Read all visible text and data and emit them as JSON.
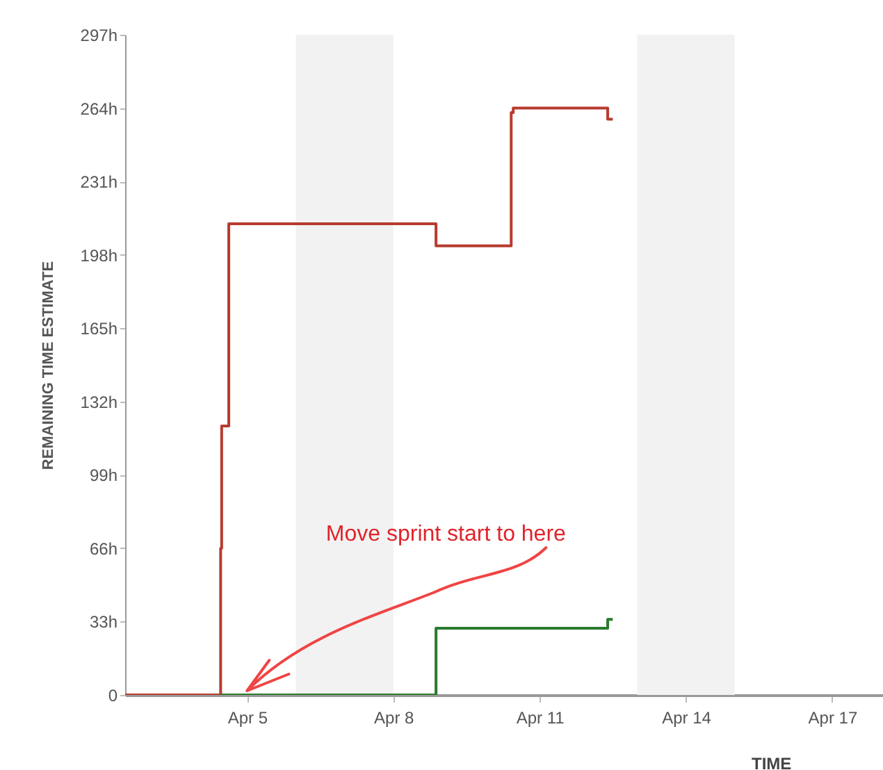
{
  "chart_data": {
    "type": "step",
    "xlabel": "TIME",
    "ylabel": "REMAINING TIME ESTIMATE",
    "xlim": [
      "--04-02T12:00",
      "--04-18T01:00"
    ],
    "xticks": [
      {
        "value": "--04-05",
        "label": "Apr 5"
      },
      {
        "value": "--04-08",
        "label": "Apr 8"
      },
      {
        "value": "--04-11",
        "label": "Apr 11"
      },
      {
        "value": "--04-14",
        "label": "Apr 14"
      },
      {
        "value": "--04-17",
        "label": "Apr 17"
      }
    ],
    "ylim": [
      0,
      297
    ],
    "yticks": [
      {
        "value": 0,
        "label": "0"
      },
      {
        "value": 33,
        "label": "33h"
      },
      {
        "value": 66,
        "label": "66h"
      },
      {
        "value": 99,
        "label": "99h"
      },
      {
        "value": 132,
        "label": "132h"
      },
      {
        "value": 165,
        "label": "165h"
      },
      {
        "value": 198,
        "label": "198h"
      },
      {
        "value": 231,
        "label": "231h"
      },
      {
        "value": 264,
        "label": "264h"
      },
      {
        "value": 297,
        "label": "297h"
      }
    ],
    "series": [
      {
        "color": "#b83b2f",
        "x": [
          "--04-02T12:00",
          "--04-04T11:00",
          "--04-04T11:30",
          "--04-04T15:00",
          "--04-08T21:00",
          "--04-10T10:00",
          "--04-10T11:00",
          "--04-12T09:30",
          "--04-12T12:00"
        ],
        "values": [
          0,
          66,
          121,
          212,
          202,
          262,
          264,
          259,
          259
        ]
      },
      {
        "color": "#2b7a2f",
        "x": [
          "--04-04T11:00",
          "--04-08T21:00",
          "--04-12T09:30",
          "--04-12T12:00"
        ],
        "values": [
          0,
          30,
          34,
          34
        ]
      }
    ],
    "bands": [
      {
        "axis": "x",
        "from": "--04-06",
        "to": "--04-08",
        "color": "#f2f2f2"
      },
      {
        "axis": "x",
        "from": "--04-13",
        "to": "--04-15",
        "color": "#f2f2f2"
      }
    ],
    "annotations": [
      {
        "text": "Move sprint start to here",
        "x": "--04-05",
        "y": 0
      }
    ]
  }
}
